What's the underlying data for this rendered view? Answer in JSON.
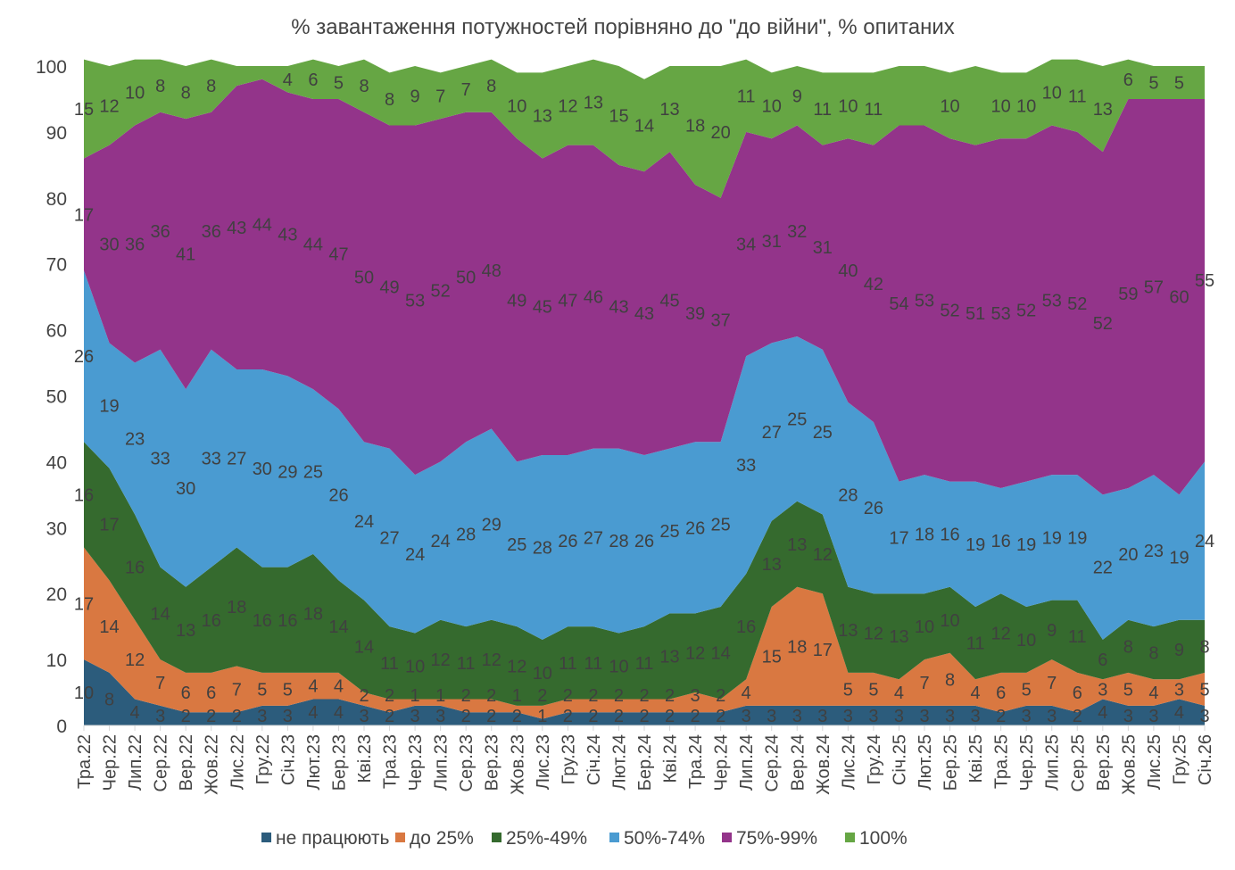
{
  "chart_data": {
    "type": "area",
    "stacked": true,
    "title": "% завантаження потужностей порівняно до \"до війни\", % опитаних",
    "xlabel": "",
    "ylabel": "",
    "ylim": [
      0,
      100
    ],
    "yticks": [
      0,
      10,
      20,
      30,
      40,
      50,
      60,
      70,
      80,
      90,
      100
    ],
    "grid": false,
    "legend_position": "bottom",
    "categories": [
      "Тра.22",
      "Чер.22",
      "Лип.22",
      "Сер.22",
      "Вер.22",
      "Жов.22",
      "Лис.22",
      "Гру.22",
      "Січ.23",
      "Лют.23",
      "Бер.23",
      "Кві.23",
      "Тра.23",
      "Чер.23",
      "Лип.23",
      "Сер.23",
      "Вер.23",
      "Жов.23",
      "Лис.23",
      "Гру.23",
      "Січ.24",
      "Лют.24",
      "Бер.24",
      "Кві.24",
      "Тра.24",
      "Чер.24",
      "Лип.24",
      "Сер.24",
      "Вер.24",
      "Жов.24",
      "Лис.24",
      "Гру.24",
      "Січ.25",
      "Лют.25",
      "Бер.25",
      "Кві.25",
      "Тра.25",
      "Чер.25",
      "Лип.25",
      "Сер.25",
      "Вер.25",
      "Жов.25",
      "Лис.25",
      "Гру.25",
      "Січ.26"
    ],
    "series": [
      {
        "name": "не працюють",
        "color": "#2C5C7C",
        "values": [
          10,
          8,
          4,
          3,
          2,
          2,
          2,
          3,
          3,
          4,
          4,
          3,
          2,
          3,
          3,
          2,
          2,
          2,
          1,
          2,
          2,
          2,
          2,
          2,
          2,
          2,
          3,
          3,
          3,
          3,
          3,
          3,
          3,
          3,
          3,
          3,
          2,
          3,
          3,
          2,
          4,
          3,
          3,
          4,
          3
        ],
        "label_hidden": []
      },
      {
        "name": "до 25%",
        "color": "#D97841",
        "values": [
          17,
          14,
          12,
          7,
          6,
          6,
          7,
          5,
          5,
          4,
          4,
          2,
          2,
          1,
          1,
          2,
          2,
          1,
          2,
          2,
          2,
          2,
          2,
          2,
          3,
          2,
          4,
          15,
          18,
          17,
          5,
          5,
          4,
          7,
          8,
          4,
          6,
          5,
          7,
          6,
          3,
          5,
          4,
          3,
          5
        ],
        "label_hidden": []
      },
      {
        "name": "25%-49%",
        "color": "#356A2E",
        "values": [
          16,
          17,
          16,
          14,
          13,
          16,
          18,
          16,
          16,
          18,
          14,
          14,
          11,
          10,
          12,
          11,
          12,
          12,
          10,
          11,
          11,
          10,
          11,
          13,
          12,
          14,
          16,
          13,
          13,
          12,
          13,
          12,
          13,
          10,
          10,
          11,
          12,
          10,
          9,
          11,
          6,
          8,
          8,
          9,
          8
        ],
        "label_hidden": []
      },
      {
        "name": "50%-74%",
        "color": "#4A9BD1",
        "values": [
          26,
          19,
          23,
          33,
          30,
          33,
          27,
          30,
          29,
          25,
          26,
          24,
          27,
          24,
          24,
          28,
          29,
          25,
          28,
          26,
          27,
          28,
          26,
          25,
          26,
          25,
          33,
          27,
          25,
          25,
          28,
          26,
          17,
          18,
          16,
          19,
          16,
          19,
          19,
          19,
          22,
          20,
          23,
          19,
          24
        ],
        "label_hidden": []
      },
      {
        "name": "75%-99%",
        "color": "#93348A",
        "values": [
          17,
          30,
          36,
          36,
          41,
          36,
          43,
          44,
          43,
          44,
          47,
          50,
          49,
          53,
          52,
          50,
          48,
          49,
          45,
          47,
          46,
          43,
          43,
          45,
          39,
          37,
          34,
          31,
          32,
          31,
          40,
          42,
          54,
          53,
          52,
          51,
          53,
          52,
          53,
          52,
          52,
          59,
          57,
          60,
          55
        ],
        "label_hidden": []
      },
      {
        "name": "100%",
        "color": "#66A644",
        "values": [
          15,
          12,
          10,
          8,
          8,
          8,
          3,
          2,
          4,
          6,
          5,
          8,
          8,
          9,
          7,
          7,
          8,
          10,
          13,
          12,
          13,
          15,
          14,
          13,
          18,
          20,
          11,
          10,
          9,
          11,
          10,
          11,
          9,
          9,
          10,
          12,
          10,
          10,
          10,
          11,
          13,
          6,
          5,
          5,
          5
        ],
        "label_hidden": [
          6,
          7,
          32,
          33,
          35,
          44
        ]
      }
    ]
  }
}
